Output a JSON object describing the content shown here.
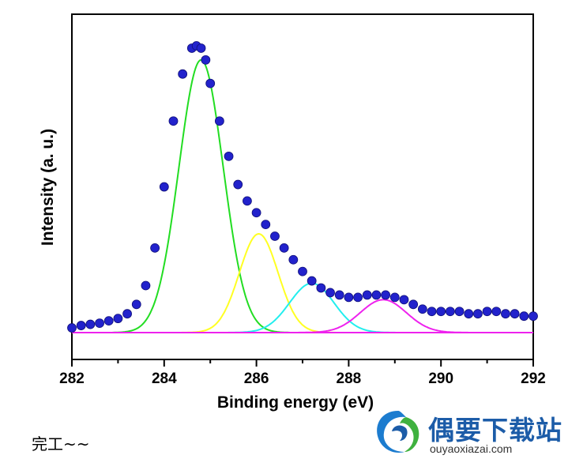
{
  "chart_data": {
    "type": "scatter",
    "xlabel": "Binding energy (eV)",
    "ylabel": "Intensity (a. u.)",
    "xlim": [
      282,
      292
    ],
    "ylim": [
      0,
      1.25
    ],
    "xticks": [
      "282",
      "284",
      "286",
      "288",
      "290",
      "292"
    ],
    "colors": {
      "data": "#2222cc",
      "peak1": "#22dd22",
      "peak2": "#ffff22",
      "peak3": "#22eeee",
      "peak4": "#ee22ee",
      "baseline": "#ee22ee"
    },
    "series": [
      {
        "type": "scatter",
        "x": [
          282.0,
          282.2,
          282.4,
          282.6,
          282.8,
          283.0,
          283.2,
          283.4,
          283.6,
          283.8,
          284.0,
          284.2,
          284.4,
          284.6,
          284.7,
          284.8,
          284.9,
          285.0,
          285.2,
          285.4,
          285.6,
          285.8,
          286.0,
          286.2,
          286.4,
          286.6,
          286.8,
          287.0,
          287.2,
          287.4,
          287.6,
          287.8,
          288.0,
          288.2,
          288.4,
          288.6,
          288.8,
          289.0,
          289.2,
          289.4,
          289.6,
          289.8,
          290.0,
          290.2,
          290.4,
          290.6,
          290.8,
          291.0,
          291.2,
          291.4,
          291.6,
          291.8,
          292.0
        ],
        "y": [
          0.02,
          0.03,
          0.035,
          0.04,
          0.05,
          0.06,
          0.08,
          0.12,
          0.2,
          0.36,
          0.62,
          0.9,
          1.1,
          1.21,
          1.22,
          1.21,
          1.16,
          1.06,
          0.9,
          0.75,
          0.63,
          0.56,
          0.51,
          0.46,
          0.41,
          0.36,
          0.31,
          0.26,
          0.22,
          0.19,
          0.17,
          0.16,
          0.15,
          0.15,
          0.16,
          0.16,
          0.16,
          0.15,
          0.14,
          0.12,
          0.1,
          0.09,
          0.09,
          0.09,
          0.09,
          0.08,
          0.08,
          0.09,
          0.09,
          0.08,
          0.08,
          0.07,
          0.07
        ]
      },
      {
        "type": "peak",
        "center": 284.8,
        "height": 1.16,
        "sigma": 0.48
      },
      {
        "type": "peak",
        "center": 286.05,
        "height": 0.42,
        "sigma": 0.42
      },
      {
        "type": "peak",
        "center": 287.2,
        "height": 0.21,
        "sigma": 0.48
      },
      {
        "type": "peak",
        "center": 288.75,
        "height": 0.14,
        "sigma": 0.5
      },
      {
        "type": "baseline",
        "y": 0
      }
    ]
  },
  "caption": "完工~~",
  "watermark": {
    "title": "偶要下载站",
    "url": "ouyaoxiazai.com"
  }
}
